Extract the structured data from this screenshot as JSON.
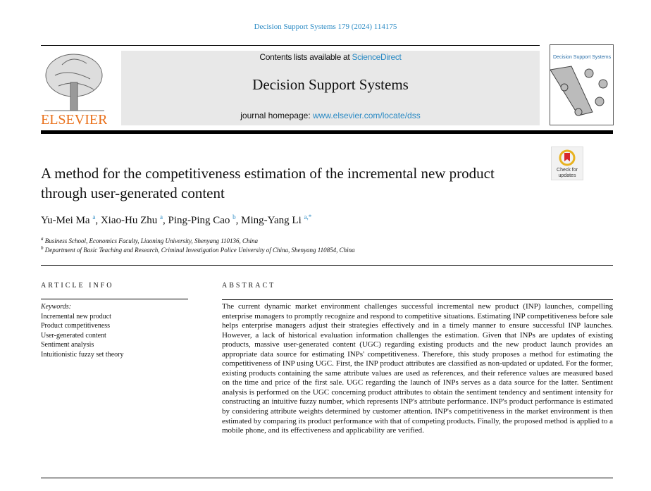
{
  "header": {
    "journal_ref": "Decision Support Systems 179 (2024) 114175",
    "contents_prefix": "Contents lists available at ",
    "contents_link": "ScienceDirect",
    "journal_title": "Decision Support Systems",
    "homepage_prefix": "journal homepage: ",
    "homepage_link": "www.elsevier.com/locate/dss",
    "publisher": "ELSEVIER",
    "cover_title": "Decision Support Systems",
    "check_updates": "Check for updates"
  },
  "article": {
    "title": "A method for the competitiveness estimation of the incremental new product through user-generated content",
    "authors": [
      {
        "name": "Yu-Mei Ma",
        "sup": "a"
      },
      {
        "name": "Xiao-Hu Zhu",
        "sup": "a"
      },
      {
        "name": "Ping-Ping Cao",
        "sup": "b"
      },
      {
        "name": "Ming-Yang Li",
        "sup": "a,*"
      }
    ],
    "affiliations": [
      {
        "sup": "a",
        "text": "Business School, Economics Faculty, Liaoning University, Shenyang 110136, China"
      },
      {
        "sup": "b",
        "text": "Department of Basic Teaching and Research, Criminal Investigation Police University of China, Shenyang 110854, China"
      }
    ],
    "article_info_heading": "ARTICLE INFO",
    "keywords_label": "Keywords:",
    "keywords": [
      "Incremental new product",
      "Product competitiveness",
      "User-generated content",
      "Sentiment analysis",
      "Intuitionistic fuzzy set theory"
    ],
    "abstract_heading": "ABSTRACT",
    "abstract": "The current dynamic market environment challenges successful incremental new product (INP) launches, compelling enterprise managers to promptly recognize and respond to competitive situations. Estimating INP competitiveness before sale helps enterprise managers adjust their strategies effectively and in a timely manner to ensure successful INP launches. However, a lack of historical evaluation information challenges the estima­tion. Given that INPs are updates of existing products, massive user-generated content (UGC) regarding existing products and the new product launch provides an appropriate data source for estimating INPs' competitiveness. Therefore, this study proposes a method for estimating the competitiveness of INP using UGC. First, the INP product attributes are classified as non-updated or updated. For the former, existing products containing the same attribute values are used as references, and their reference values are measured based on the time and price of the first sale. UGC regarding the launch of INPs serves as a data source for the latter. Sentiment analysis is performed on the UGC concerning product attributes to obtain the sentiment tendency and sentiment intensity for constructing an intuitive fuzzy number, which represents INP's attribute performance. INP's product per­formance is estimated by considering attribute weights determined by customer attention. INP's competitiveness in the market environment is then estimated by comparing its product performance with that of competing products. Finally, the proposed method is applied to a mobile phone, and its effectiveness and applicability are verified."
  },
  "colors": {
    "link": "#2a8ac4",
    "elsevier_orange": "#e9711c",
    "banner_grey": "#e8e8e8"
  }
}
